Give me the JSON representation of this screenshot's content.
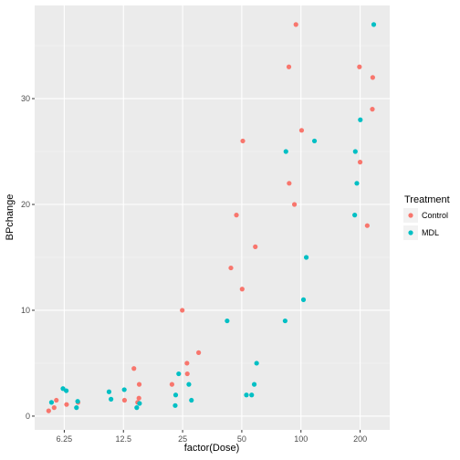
{
  "chart_data": {
    "type": "scatter",
    "xlabel": "factor(Dose)",
    "ylabel": "BPchange",
    "categories": [
      "6.25",
      "12.5",
      "25",
      "50",
      "100",
      "200"
    ],
    "y_ticks": [
      0,
      10,
      20,
      30
    ],
    "ylim": [
      -1.3,
      38.8
    ],
    "grid": true,
    "legend": {
      "title": "Treatment",
      "position": "right"
    },
    "series": [
      {
        "name": "Control",
        "color": "#F8766D",
        "points": [
          {
            "x": "6.25",
            "y": 1.5
          },
          {
            "x": "6.25",
            "y": 1.3
          },
          {
            "x": "6.25",
            "y": 1.1
          },
          {
            "x": "6.25",
            "y": 0.8
          },
          {
            "x": "6.25",
            "y": 0.5
          },
          {
            "x": "12.5",
            "y": 4.5
          },
          {
            "x": "12.5",
            "y": 3.0
          },
          {
            "x": "12.5",
            "y": 1.7
          },
          {
            "x": "12.5",
            "y": 1.5
          },
          {
            "x": "12.5",
            "y": 1.3
          },
          {
            "x": "25",
            "y": 10.0
          },
          {
            "x": "25",
            "y": 6.0
          },
          {
            "x": "25",
            "y": 5.0
          },
          {
            "x": "25",
            "y": 4.0
          },
          {
            "x": "25",
            "y": 3.0
          },
          {
            "x": "50",
            "y": 26.0
          },
          {
            "x": "50",
            "y": 19.0
          },
          {
            "x": "50",
            "y": 16.0
          },
          {
            "x": "50",
            "y": 14.0
          },
          {
            "x": "50",
            "y": 12.0
          },
          {
            "x": "100",
            "y": 37.0
          },
          {
            "x": "100",
            "y": 33.0
          },
          {
            "x": "100",
            "y": 27.0
          },
          {
            "x": "100",
            "y": 22.0
          },
          {
            "x": "100",
            "y": 20.0
          },
          {
            "x": "200",
            "y": 33.0
          },
          {
            "x": "200",
            "y": 32.0
          },
          {
            "x": "200",
            "y": 29.0
          },
          {
            "x": "200",
            "y": 24.0
          },
          {
            "x": "200",
            "y": 18.0
          }
        ]
      },
      {
        "name": "MDL",
        "color": "#00BFC4",
        "points": [
          {
            "x": "6.25",
            "y": 2.6
          },
          {
            "x": "6.25",
            "y": 2.4
          },
          {
            "x": "6.25",
            "y": 1.4
          },
          {
            "x": "6.25",
            "y": 1.3
          },
          {
            "x": "6.25",
            "y": 0.8
          },
          {
            "x": "12.5",
            "y": 2.5
          },
          {
            "x": "12.5",
            "y": 2.3
          },
          {
            "x": "12.5",
            "y": 1.6
          },
          {
            "x": "12.5",
            "y": 1.2
          },
          {
            "x": "12.5",
            "y": 0.8
          },
          {
            "x": "25",
            "y": 4.0
          },
          {
            "x": "25",
            "y": 3.0
          },
          {
            "x": "25",
            "y": 2.0
          },
          {
            "x": "25",
            "y": 1.5
          },
          {
            "x": "25",
            "y": 1.0
          },
          {
            "x": "50",
            "y": 9.0
          },
          {
            "x": "50",
            "y": 5.0
          },
          {
            "x": "50",
            "y": 3.0
          },
          {
            "x": "50",
            "y": 2.0
          },
          {
            "x": "50",
            "y": 2.0
          },
          {
            "x": "100",
            "y": 26.0
          },
          {
            "x": "100",
            "y": 25.0
          },
          {
            "x": "100",
            "y": 15.0
          },
          {
            "x": "100",
            "y": 11.0
          },
          {
            "x": "100",
            "y": 9.0
          },
          {
            "x": "200",
            "y": 37.0
          },
          {
            "x": "200",
            "y": 28.0
          },
          {
            "x": "200",
            "y": 25.0
          },
          {
            "x": "200",
            "y": 22.0
          },
          {
            "x": "200",
            "y": 19.0
          }
        ]
      }
    ]
  }
}
